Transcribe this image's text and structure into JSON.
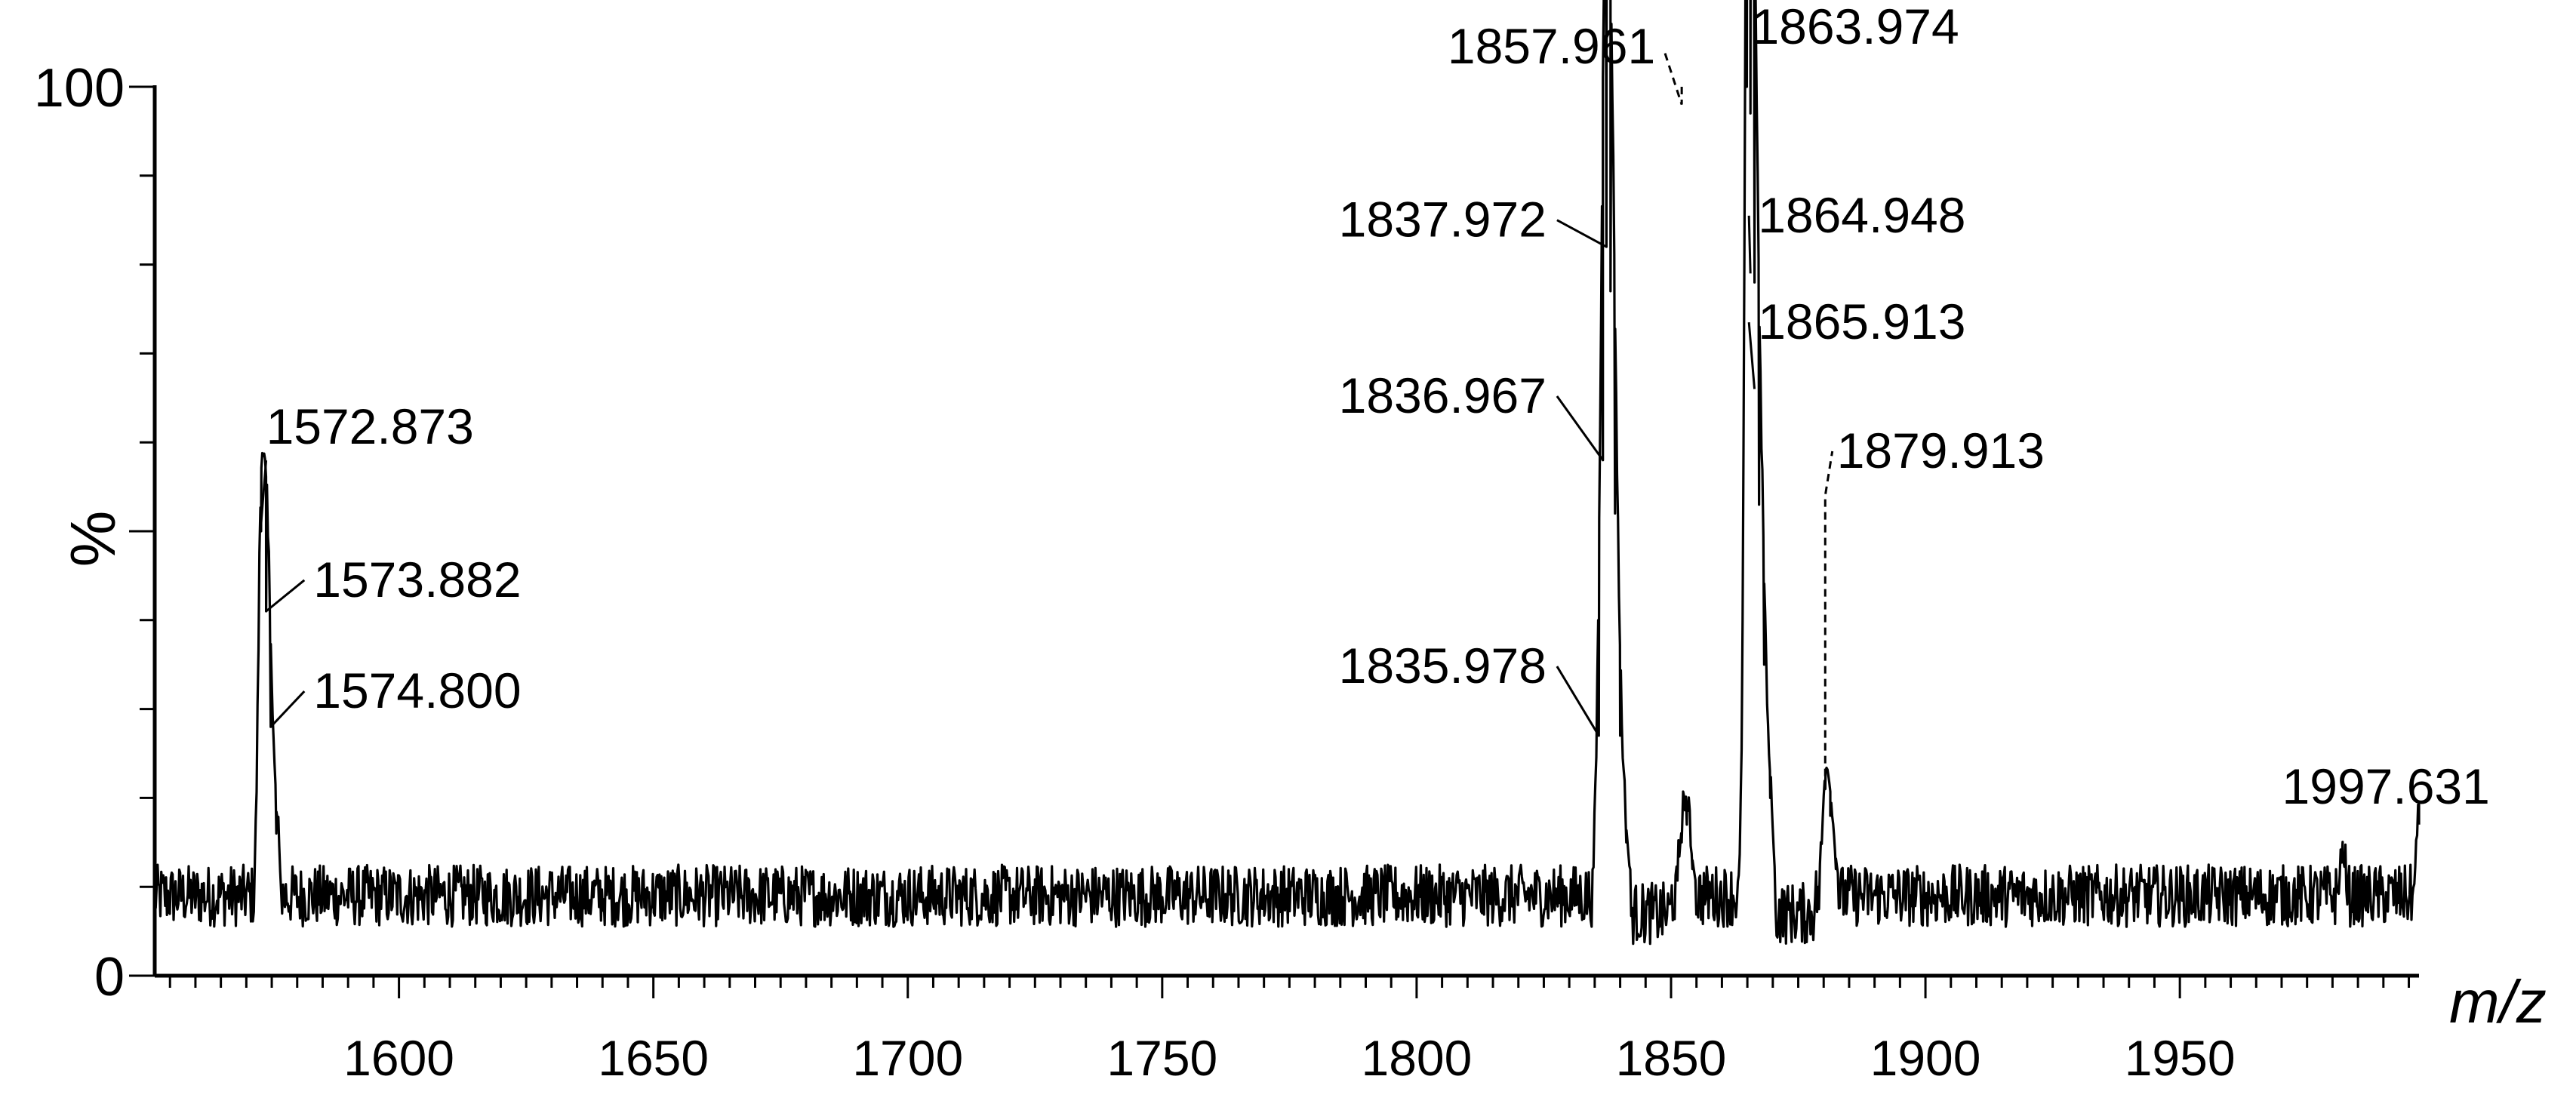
{
  "chart_data": {
    "type": "line",
    "xlabel": "m/z",
    "ylabel": "%",
    "xlim": [
      1552,
      1997
    ],
    "ylim": [
      0,
      100
    ],
    "x_ticks": [
      1600,
      1650,
      1700,
      1750,
      1800,
      1850,
      1900,
      1950
    ],
    "x_tick_labels": [
      "1600",
      "1650",
      "1700",
      "1750",
      "1800",
      "1850",
      "1900",
      "1950"
    ],
    "x_minor_step": 5,
    "y_ticks": [
      0,
      100
    ],
    "y_tick_labels": [
      "0",
      "100"
    ],
    "y_minor_step": 10,
    "grid": false,
    "legend": "none",
    "baseline": 9,
    "noise_amplitude": 3.5,
    "peaks": [
      {
        "x": 1572.9,
        "y": 50
      },
      {
        "x": 1573.9,
        "y": 41
      },
      {
        "x": 1574.8,
        "y": 28
      },
      {
        "x": 1575.9,
        "y": 16
      },
      {
        "x": 1835.8,
        "y": 27
      },
      {
        "x": 1836.6,
        "y": 58
      },
      {
        "x": 1837.3,
        "y": 82
      },
      {
        "x": 1838.1,
        "y": 77
      },
      {
        "x": 1839.0,
        "y": 52
      },
      {
        "x": 1840.0,
        "y": 27
      },
      {
        "x": 1841.2,
        "y": 15
      },
      {
        "x": 1852.1,
        "y": 15
      },
      {
        "x": 1853.1,
        "y": 17
      },
      {
        "x": 1854.2,
        "y": 12
      },
      {
        "x": 1864.9,
        "y": 100
      },
      {
        "x": 1865.6,
        "y": 97
      },
      {
        "x": 1866.4,
        "y": 78
      },
      {
        "x": 1867.3,
        "y": 53
      },
      {
        "x": 1868.3,
        "y": 35
      },
      {
        "x": 1869.5,
        "y": 20
      },
      {
        "x": 1880.3,
        "y": 21
      },
      {
        "x": 1881.3,
        "y": 18
      },
      {
        "x": 1882.4,
        "y": 12
      },
      {
        "x": 1982.0,
        "y": 13
      },
      {
        "x": 1997.0,
        "y": 17
      }
    ],
    "annotations": [
      {
        "text": "1572.873",
        "x": 1572.9,
        "y": 50,
        "label_x": 1573.0,
        "label_y": 59.5,
        "style": "solid"
      },
      {
        "text": "1573.882",
        "x": 1573.9,
        "y": 41,
        "label_x": 1582.3,
        "label_y": 44.5,
        "style": "solid"
      },
      {
        "text": "1574.800",
        "x": 1574.8,
        "y": 28,
        "label_x": 1582.3,
        "label_y": 32.0,
        "style": "solid"
      },
      {
        "text": "1837.972",
        "x": 1837.3,
        "y": 82,
        "label_x": 1826.7,
        "label_y": 85.0,
        "style": "solid"
      },
      {
        "text": "1836.967",
        "x": 1836.6,
        "y": 58,
        "label_x": 1826.7,
        "label_y": 65.2,
        "style": "solid"
      },
      {
        "text": "1835.978",
        "x": 1835.8,
        "y": 27,
        "label_x": 1826.7,
        "label_y": 34.8,
        "style": "solid"
      },
      {
        "text": "1857.961",
        "x": 1852.1,
        "y": 100,
        "label_x": 1848.1,
        "label_y": 104.5,
        "style": "dashed"
      },
      {
        "text": "1863.974",
        "x": 1864.9,
        "y": 100,
        "label_x": 1864.9,
        "label_y": 104.5,
        "style": "solid"
      },
      {
        "text": "1864.948",
        "x": 1865.6,
        "y": 79,
        "label_x": 1866.2,
        "label_y": 85.5,
        "style": "solid"
      },
      {
        "text": "1865.913",
        "x": 1866.4,
        "y": 66,
        "label_x": 1866.2,
        "label_y": 73.5,
        "style": "solid"
      },
      {
        "text": "1879.913",
        "x": 1880.3,
        "y": 21,
        "label_x": 1881.7,
        "label_y": 59.0,
        "style": "dashed"
      },
      {
        "text": "1997.631",
        "x": 1997.0,
        "y": 17,
        "label_x": 1990.5,
        "label_y": 19.0,
        "style": "none"
      }
    ]
  }
}
